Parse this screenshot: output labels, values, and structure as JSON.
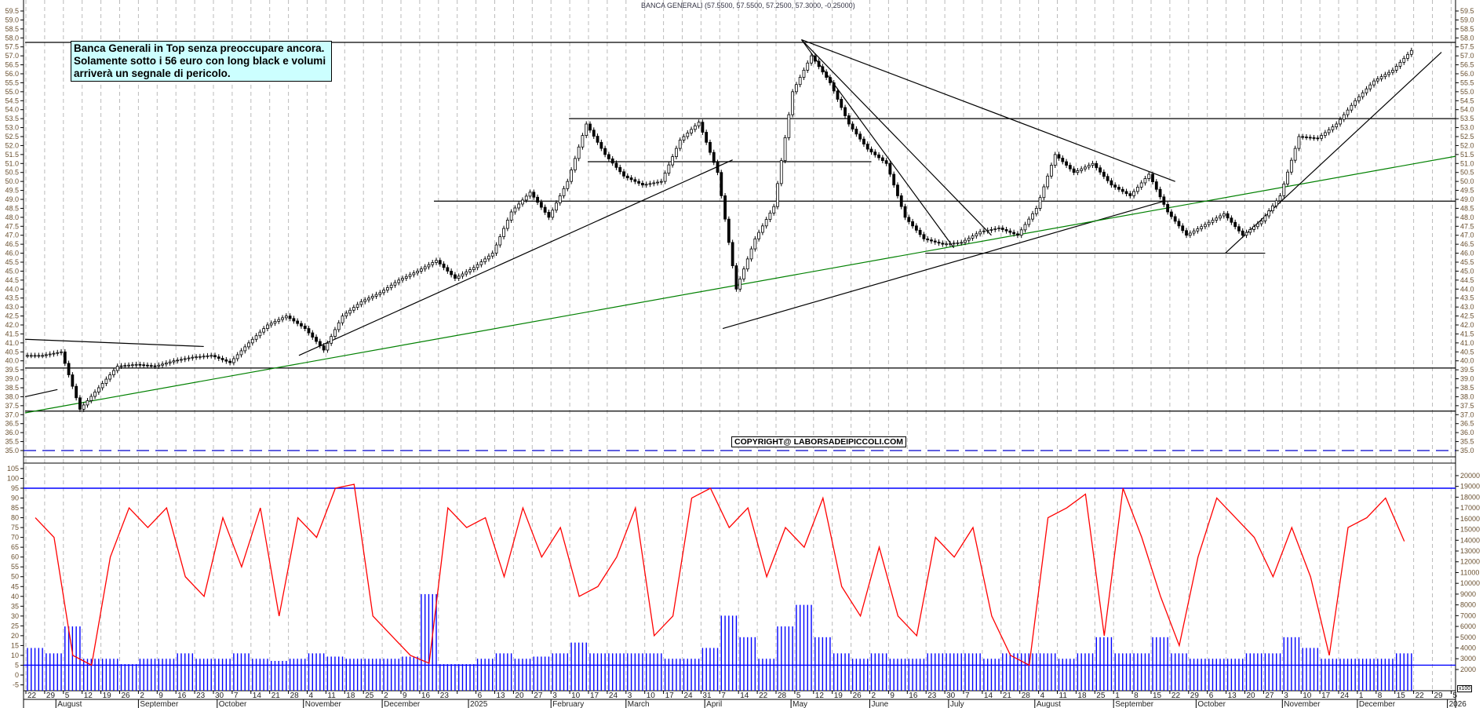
{
  "chart_data": {
    "type": "candlestick",
    "title": "BANCA GENERALI (57.5500, 57.5500, 57.2500, 57.3000, -0.25000)",
    "annotation": [
      "Banca Generali in Top senza preoccupare ancora.",
      "Solamente sotto i 56 euro con long black e volumi",
      "arriverà un segnale di pericolo."
    ],
    "copyright": "COPYRIGHT@ LABORSADEIPICCOLI.COM",
    "price_axis": {
      "min": 35.0,
      "max": 59.5,
      "step": 0.5
    },
    "oscillator_axis": {
      "min": -5,
      "max": 105,
      "step": 5
    },
    "volume_axis": {
      "min": 2000,
      "max": 20000,
      "step": 1000,
      "unit_label": "x100"
    },
    "grid": "weekly dashed vertical",
    "x_ticks": [
      "22",
      "29",
      "5",
      "12",
      "19",
      "26",
      "2",
      "9",
      "16",
      "23",
      "30",
      "7",
      "14",
      "21",
      "28",
      "4",
      "11",
      "18",
      "25",
      "2",
      "9",
      "16",
      "23",
      "",
      "6",
      "13",
      "20",
      "27",
      "3",
      "10",
      "17",
      "24",
      "3",
      "10",
      "17",
      "24",
      "31",
      "7",
      "14",
      "22",
      "28",
      "5",
      "12",
      "19",
      "26",
      "2",
      "9",
      "16",
      "23",
      "30",
      "7",
      "14",
      "21",
      "28",
      "4",
      "11",
      "18",
      "25",
      "1",
      "8",
      "15",
      "22",
      "29",
      "6",
      "13",
      "20",
      "27",
      "3",
      "10",
      "17",
      "24",
      "1",
      "8",
      "15",
      "22",
      "29",
      "5"
    ],
    "months": [
      {
        "label": "August",
        "date": "2024-08-01"
      },
      {
        "label": "September",
        "date": "2024-09-02"
      },
      {
        "label": "October",
        "date": "2024-10-01"
      },
      {
        "label": "November",
        "date": "2024-11-01"
      },
      {
        "label": "December",
        "date": "2024-12-02"
      },
      {
        "label": "2025",
        "date": "2025-01-02"
      },
      {
        "label": "February",
        "date": "2025-02-03"
      },
      {
        "label": "March",
        "date": "2025-03-03"
      },
      {
        "label": "April",
        "date": "2025-04-01"
      },
      {
        "label": "May",
        "date": "2025-05-02"
      },
      {
        "label": "June",
        "date": "2025-06-02"
      },
      {
        "label": "July",
        "date": "2025-07-01"
      },
      {
        "label": "August",
        "date": "2025-08-01"
      },
      {
        "label": "September",
        "date": "2025-09-01"
      },
      {
        "label": "October",
        "date": "2025-10-01"
      },
      {
        "label": "November",
        "date": "2025-11-03"
      },
      {
        "label": "December",
        "date": "2025-12-01"
      },
      {
        "label": "2026",
        "date": "2026-01-02"
      }
    ],
    "weekly_close": [
      40.3,
      40.5,
      37.3,
      38.5,
      39.7,
      39.8,
      39.7,
      40.0,
      40.2,
      40.3,
      39.9,
      41.0,
      42.0,
      42.5,
      41.8,
      40.6,
      42.5,
      43.3,
      43.8,
      44.5,
      45.0,
      45.6,
      44.6,
      45.2,
      46.0,
      48.3,
      49.4,
      48.0,
      50.0,
      53.2,
      51.5,
      50.3,
      49.8,
      50.0,
      52.3,
      53.3,
      50.5,
      44.0,
      46.8,
      48.6,
      55.0,
      57.0,
      55.5,
      53.2,
      51.8,
      51.0,
      48.0,
      46.8,
      46.5,
      46.6,
      47.2,
      47.4,
      47.0,
      48.5,
      51.5,
      50.5,
      51.0,
      49.8,
      49.2,
      50.4,
      48.3,
      47.0,
      47.6,
      48.2,
      47.0,
      47.8,
      49.2,
      52.5,
      52.4,
      53.2,
      54.5,
      55.6,
      56.2,
      57.3
    ],
    "oscillator_weekly": [
      80,
      70,
      10,
      5,
      60,
      85,
      75,
      85,
      50,
      40,
      80,
      55,
      85,
      30,
      80,
      70,
      95,
      97,
      30,
      20,
      10,
      6,
      85,
      75,
      80,
      50,
      85,
      60,
      75,
      40,
      45,
      60,
      85,
      20,
      30,
      90,
      95,
      75,
      85,
      50,
      75,
      65,
      90,
      45,
      30,
      65,
      30,
      20,
      70,
      60,
      75,
      30,
      10,
      5,
      80,
      85,
      92,
      20,
      95,
      70,
      40,
      15,
      60,
      90,
      80,
      70,
      50,
      75,
      50,
      10,
      75,
      80,
      90,
      68
    ],
    "volume_weekly": [
      4000,
      3500,
      6000,
      3000,
      3000,
      2500,
      3000,
      3000,
      3500,
      3000,
      3000,
      3500,
      3000,
      2800,
      3000,
      3500,
      3200,
      3000,
      3000,
      3000,
      3200,
      9000,
      2500,
      2500,
      3000,
      3500,
      3000,
      3200,
      3500,
      4500,
      3500,
      3500,
      3500,
      3500,
      3000,
      3000,
      4000,
      7000,
      5000,
      3000,
      6000,
      8000,
      5000,
      3500,
      3000,
      3500,
      3000,
      3000,
      3500,
      3500,
      3500,
      3000,
      3500,
      3500,
      3500,
      3000,
      3500,
      5000,
      3500,
      3500,
      5000,
      3500,
      3000,
      3000,
      3000,
      3500,
      3500,
      5000,
      4000,
      3000,
      3000,
      3000,
      3000,
      3500
    ],
    "horizontal_levels": [
      {
        "price": 57.75,
        "from": "2024-07-22",
        "to": "2026-01-09",
        "color": "#000000"
      },
      {
        "price": 53.5,
        "from": "2025-02-10",
        "to": "2026-01-09",
        "color": "#000000"
      },
      {
        "price": 51.1,
        "from": "2025-02-17",
        "to": "2025-06-02",
        "color": "#000000"
      },
      {
        "price": 48.9,
        "from": "2024-12-20",
        "to": "2026-01-09",
        "color": "#000000"
      },
      {
        "price": 46.0,
        "from": "2025-06-23",
        "to": "2025-10-27",
        "color": "#000000"
      },
      {
        "price": 39.6,
        "from": "2024-07-22",
        "to": "2026-01-09",
        "color": "#000000"
      },
      {
        "price": 37.2,
        "from": "2024-07-22",
        "to": "2026-01-09",
        "color": "#000000"
      }
    ],
    "trendlines": [
      {
        "from": [
          "2024-07-22",
          41.2
        ],
        "to": [
          "2024-09-25",
          40.8
        ],
        "color": "#000000"
      },
      {
        "from": [
          "2024-07-22",
          38.0
        ],
        "to": [
          "2024-08-01",
          38.4
        ],
        "color": "#000000"
      },
      {
        "from": [
          "2024-10-31",
          40.3
        ],
        "to": [
          "2025-04-10",
          51.2
        ],
        "color": "#000000"
      },
      {
        "from": [
          "2025-04-08",
          41.8
        ],
        "to": [
          "2025-09-18",
          48.9
        ],
        "color": "#000000"
      },
      {
        "from": [
          "2024-07-22",
          37.1
        ],
        "to": [
          "2026-01-09",
          51.4
        ],
        "color": "#008000"
      },
      {
        "from": [
          "2025-05-07",
          57.9
        ],
        "to": [
          "2025-09-23",
          50.0
        ],
        "color": "#000000"
      },
      {
        "from": [
          "2025-05-07",
          57.9
        ],
        "to": [
          "2025-07-16",
          47.0
        ],
        "color": "#000000"
      },
      {
        "from": [
          "2025-05-07",
          57.9
        ],
        "to": [
          "2025-07-02",
          46.3
        ],
        "color": "#000000"
      },
      {
        "from": [
          "2025-10-13",
          46.0
        ],
        "to": [
          "2025-12-31",
          57.2
        ],
        "color": "#000000"
      }
    ],
    "dashed_level": {
      "price": 35.0,
      "color": "#0000cc"
    },
    "oscillator_levels": [
      95,
      5
    ],
    "colors": {
      "oscillator": "#ff0000",
      "volume": "#0000ff",
      "levels": "#0000ff",
      "candle_down": "#000000",
      "candle_up": "#ffffff"
    }
  }
}
